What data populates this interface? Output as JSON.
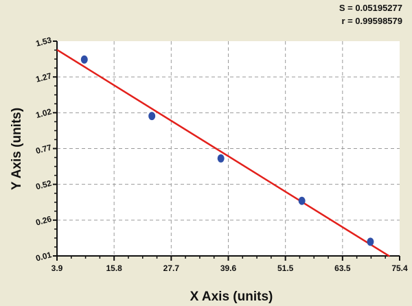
{
  "chart_data": {
    "type": "scatter",
    "title": "",
    "xlabel": "X Axis (units)",
    "ylabel": "Y Axis (units)",
    "xlim": [
      3.9,
      75.4
    ],
    "ylim": [
      0.01,
      1.53
    ],
    "x_ticks": [
      "3.9",
      "15.8",
      "27.7",
      "39.6",
      "51.5",
      "63.5",
      "75.4"
    ],
    "y_ticks": [
      "0.01",
      "0.26",
      "0.52",
      "0.77",
      "1.02",
      "1.27",
      "1.53"
    ],
    "grid": true,
    "series": [
      {
        "type": "scatter",
        "color": "#2f4fa8",
        "x": [
          9.6,
          23.7,
          38.1,
          55.0,
          69.3
        ],
        "y": [
          1.4,
          1.0,
          0.7,
          0.4,
          0.11
        ]
      },
      {
        "type": "line",
        "color": "#e3201b",
        "x": [
          3.9,
          73.3
        ],
        "y": [
          1.469,
          0.007
        ]
      }
    ],
    "annotations": {
      "s": "S = 0.05195277",
      "r": "r = 0.99598579"
    }
  }
}
